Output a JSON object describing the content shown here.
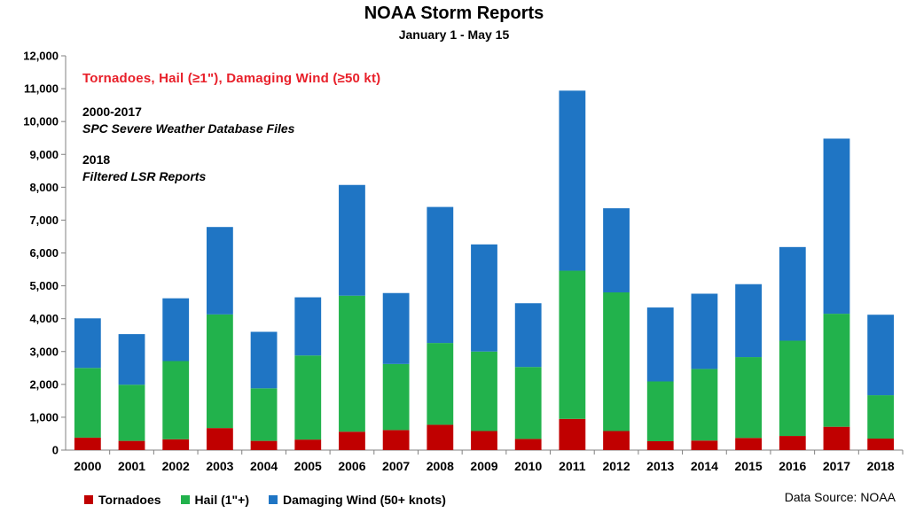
{
  "chart_data": {
    "type": "bar",
    "stacked": true,
    "title": "NOAA Storm Reports",
    "subtitle": "January 1 - May 15",
    "categories": [
      "2000",
      "2001",
      "2002",
      "2003",
      "2004",
      "2005",
      "2006",
      "2007",
      "2008",
      "2009",
      "2010",
      "2011",
      "2012",
      "2013",
      "2014",
      "2015",
      "2016",
      "2017",
      "2018"
    ],
    "series": [
      {
        "name": "Tornadoes",
        "color": "#c00000",
        "values": [
          380,
          280,
          330,
          670,
          280,
          320,
          560,
          610,
          770,
          580,
          340,
          950,
          580,
          270,
          290,
          370,
          430,
          710,
          350
        ]
      },
      {
        "name": "Hail (1\"+)",
        "color": "#22b24c",
        "values": [
          2120,
          1710,
          2380,
          3460,
          1600,
          2560,
          4140,
          2010,
          2490,
          2420,
          2190,
          4510,
          4220,
          1820,
          2180,
          2460,
          2900,
          3440,
          1320
        ]
      },
      {
        "name": "Damaging Wind (50+ knots)",
        "color": "#1f75c4",
        "values": [
          1510,
          1540,
          1910,
          2660,
          1720,
          1770,
          3370,
          2160,
          4140,
          3260,
          1940,
          5480,
          2560,
          2250,
          2290,
          2220,
          2850,
          5330,
          2450
        ]
      }
    ],
    "yticks": [
      "0",
      "1,000",
      "2,000",
      "3,000",
      "4,000",
      "5,000",
      "6,000",
      "7,000",
      "8,000",
      "9,000",
      "10,000",
      "11,000",
      "12,000"
    ],
    "ylim": [
      0,
      12000
    ],
    "xlabel": "",
    "ylabel": "",
    "grid": false,
    "legend_position": "bottom-left"
  },
  "annotations": {
    "red_line": "Tornadoes, Hail (≥1\"), Damaging Wind (≥50 kt)",
    "line1_year": "2000-2017",
    "line1_desc": "SPC Severe Weather Database Files",
    "line2_year": "2018",
    "line2_desc": "Filtered LSR Reports"
  },
  "legend": [
    {
      "label": "Tornadoes",
      "color": "#c00000"
    },
    {
      "label": "Hail (1\"+)",
      "color": "#22b24c"
    },
    {
      "label": "Damaging Wind (50+ knots)",
      "color": "#1f75c4"
    }
  ],
  "source": "Data Source: NOAA"
}
